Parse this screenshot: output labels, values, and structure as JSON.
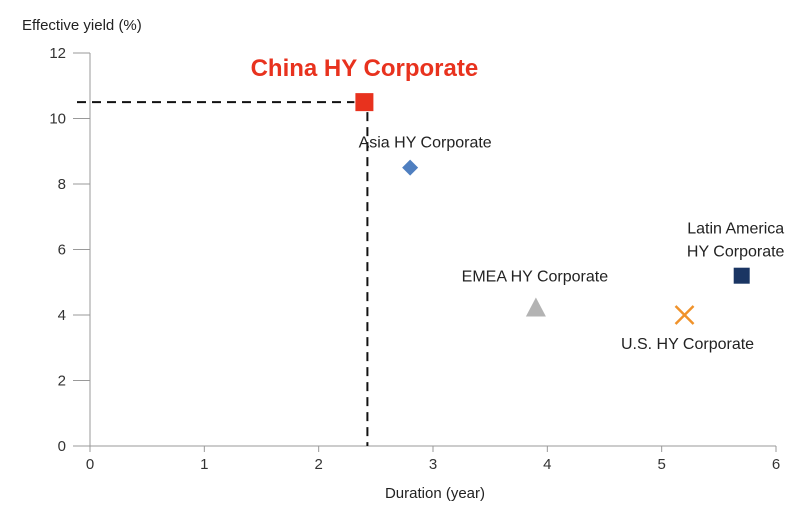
{
  "chart_data": {
    "type": "scatter",
    "ylabel": "Effective yield (%)",
    "xlabel": "Duration (year)",
    "xlim": [
      0,
      6
    ],
    "ylim": [
      0,
      12
    ],
    "x_ticks": [
      "0",
      "1",
      "2",
      "3",
      "4",
      "5",
      "6"
    ],
    "y_ticks": [
      "0",
      "2",
      "4",
      "6",
      "8",
      "10",
      "12"
    ],
    "grid": false,
    "series": [
      {
        "name": "China HY Corporate",
        "x": 2.4,
        "y": 10.5,
        "marker": "square",
        "color": "#e8321e",
        "highlight": true
      },
      {
        "name": "Asia HY Corporate",
        "x": 2.8,
        "y": 8.5,
        "marker": "diamond",
        "color": "#4f7fc0"
      },
      {
        "name": "EMEA HY Corporate",
        "x": 3.9,
        "y": 4.2,
        "marker": "triangle",
        "color": "#b3b3b3"
      },
      {
        "name": "U.S. HY Corporate",
        "x": 5.2,
        "y": 4.0,
        "marker": "x",
        "color": "#f0922a"
      },
      {
        "name": "Latin America HY Corporate",
        "label_lines": [
          "Latin America",
          "HY Corporate"
        ],
        "x": 5.7,
        "y": 5.2,
        "marker": "square",
        "color": "#1a3563"
      }
    ]
  }
}
